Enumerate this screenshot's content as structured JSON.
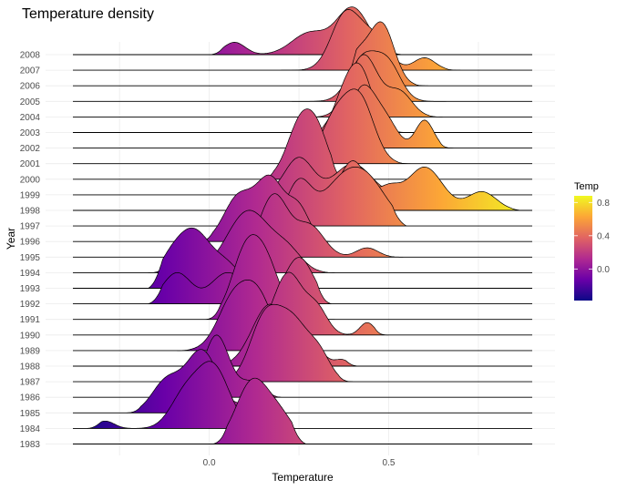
{
  "chart_data": {
    "type": "ridgeline",
    "title": "Temperature density",
    "xlabel": "Temperature",
    "ylabel": "Year",
    "xlim": [
      -0.38,
      0.9
    ],
    "x_ticks": [
      {
        "value": 0.0,
        "label": "0.0"
      },
      {
        "value": 0.5,
        "label": "0.5"
      }
    ],
    "years": [
      "1983",
      "1984",
      "1985",
      "1986",
      "1987",
      "1988",
      "1989",
      "1990",
      "1991",
      "1992",
      "1993",
      "1994",
      "1995",
      "1996",
      "1997",
      "1998",
      "1999",
      "2000",
      "2001",
      "2002",
      "2003",
      "2004",
      "2005",
      "2006",
      "2007",
      "2008"
    ],
    "densities": [
      {
        "year": "1983",
        "range": [
          0.01,
          0.27
        ],
        "peaks": [
          [
            0.12,
            0.045,
            1.0
          ],
          [
            0.2,
            0.04,
            0.4
          ]
        ]
      },
      {
        "year": "1984",
        "range": [
          -0.34,
          0.22
        ],
        "peaks": [
          [
            0.01,
            0.045,
            1.0
          ],
          [
            -0.07,
            0.04,
            0.5
          ],
          [
            -0.29,
            0.025,
            0.12
          ]
        ]
      },
      {
        "year": "1985",
        "range": [
          -0.23,
          0.2
        ],
        "peaks": [
          [
            -0.02,
            0.045,
            1.0
          ],
          [
            -0.12,
            0.04,
            0.5
          ],
          [
            0.12,
            0.03,
            0.2
          ]
        ]
      },
      {
        "year": "1986",
        "range": [
          -0.07,
          0.2
        ],
        "peaks": [
          [
            0.02,
            0.035,
            1.0
          ],
          [
            0.12,
            0.035,
            0.25
          ]
        ]
      },
      {
        "year": "1987",
        "range": [
          -0.01,
          0.4
        ],
        "peaks": [
          [
            0.15,
            0.04,
            0.85
          ],
          [
            0.23,
            0.05,
            1.0
          ],
          [
            0.31,
            0.03,
            0.3
          ]
        ]
      },
      {
        "year": "1988",
        "range": [
          -0.01,
          0.42
        ],
        "peaks": [
          [
            0.17,
            0.05,
            1.0
          ],
          [
            0.29,
            0.03,
            0.3
          ],
          [
            0.37,
            0.02,
            0.1
          ]
        ]
      },
      {
        "year": "1989",
        "range": [
          -0.09,
          0.3
        ],
        "peaks": [
          [
            0.07,
            0.045,
            0.85
          ],
          [
            0.14,
            0.04,
            0.75
          ]
        ]
      },
      {
        "year": "1990",
        "range": [
          0.1,
          0.5
        ],
        "peaks": [
          [
            0.22,
            0.04,
            1.0
          ],
          [
            0.3,
            0.03,
            0.4
          ],
          [
            0.44,
            0.02,
            0.2
          ]
        ]
      },
      {
        "year": "1991",
        "range": [
          -0.01,
          0.35
        ],
        "peaks": [
          [
            0.1,
            0.04,
            1.0
          ],
          [
            0.16,
            0.04,
            0.8
          ]
        ]
      },
      {
        "year": "1992",
        "range": [
          -0.17,
          0.34
        ],
        "peaks": [
          [
            -0.09,
            0.04,
            0.5
          ],
          [
            0.05,
            0.045,
            0.5
          ],
          [
            0.13,
            0.025,
            0.5
          ],
          [
            0.25,
            0.04,
            0.75
          ]
        ]
      },
      {
        "year": "1993",
        "range": [
          -0.17,
          0.19
        ],
        "peaks": [
          [
            -0.04,
            0.045,
            0.85
          ],
          [
            -0.11,
            0.04,
            0.4
          ],
          [
            0.05,
            0.04,
            0.35
          ]
        ]
      },
      {
        "year": "1994",
        "range": [
          -0.17,
          0.35
        ],
        "peaks": [
          [
            -0.07,
            0.03,
            0.55
          ],
          [
            0.11,
            0.06,
            1.0
          ],
          [
            0.22,
            0.04,
            0.3
          ]
        ]
      },
      {
        "year": "1995",
        "range": [
          0.07,
          0.54
        ],
        "peaks": [
          [
            0.18,
            0.04,
            1.0
          ],
          [
            0.28,
            0.04,
            0.5
          ],
          [
            0.44,
            0.03,
            0.15
          ]
        ]
      },
      {
        "year": "1996",
        "range": [
          -0.03,
          0.34
        ],
        "peaks": [
          [
            0.08,
            0.04,
            0.7
          ],
          [
            0.17,
            0.04,
            1.0
          ],
          [
            0.25,
            0.03,
            0.5
          ]
        ]
      },
      {
        "year": "1997",
        "range": [
          0.05,
          0.55
        ],
        "peaks": [
          [
            0.25,
            0.035,
            0.7
          ],
          [
            0.43,
            0.06,
            0.8
          ],
          [
            0.35,
            0.05,
            0.4
          ]
        ]
      },
      {
        "year": "1998",
        "range": [
          0.1,
          0.88
        ],
        "peaks": [
          [
            0.4,
            0.04,
            0.8
          ],
          [
            0.6,
            0.05,
            0.7
          ],
          [
            0.5,
            0.03,
            0.3
          ],
          [
            0.76,
            0.04,
            0.3
          ]
        ]
      },
      {
        "year": "1999",
        "range": [
          0.14,
          0.59
        ],
        "peaks": [
          [
            0.25,
            0.04,
            0.6
          ],
          [
            0.4,
            0.05,
            0.5
          ]
        ]
      },
      {
        "year": "2000",
        "range": [
          0.14,
          0.38
        ],
        "peaks": [
          [
            0.26,
            0.04,
            1.0
          ],
          [
            0.31,
            0.03,
            0.4
          ]
        ]
      },
      {
        "year": "2001",
        "range": [
          0.24,
          0.56
        ],
        "peaks": [
          [
            0.35,
            0.04,
            0.7
          ],
          [
            0.42,
            0.04,
            1.0
          ]
        ]
      },
      {
        "year": "2002",
        "range": [
          0.28,
          0.68
        ],
        "peaks": [
          [
            0.43,
            0.04,
            1.0
          ],
          [
            0.6,
            0.025,
            0.45
          ],
          [
            0.5,
            0.03,
            0.3
          ]
        ]
      },
      {
        "year": "2003",
        "range": [
          0.28,
          0.58
        ],
        "peaks": [
          [
            0.42,
            0.035,
            1.0
          ],
          [
            0.37,
            0.03,
            0.4
          ]
        ]
      },
      {
        "year": "2004",
        "range": [
          0.28,
          0.65
        ],
        "peaks": [
          [
            0.43,
            0.04,
            1.0
          ],
          [
            0.53,
            0.035,
            0.4
          ]
        ]
      },
      {
        "year": "2005",
        "range": [
          0.23,
          0.66
        ],
        "peaks": [
          [
            0.43,
            0.04,
            0.7
          ],
          [
            0.5,
            0.035,
            0.55
          ]
        ]
      },
      {
        "year": "2006",
        "range": [
          0.37,
          0.61
        ],
        "peaks": [
          [
            0.48,
            0.035,
            1.0
          ],
          [
            0.41,
            0.03,
            0.45
          ]
        ]
      },
      {
        "year": "2007",
        "range": [
          0.2,
          0.7
        ],
        "peaks": [
          [
            0.38,
            0.04,
            0.9
          ],
          [
            0.46,
            0.04,
            0.5
          ],
          [
            0.6,
            0.03,
            0.2
          ]
        ]
      },
      {
        "year": "2008",
        "range": [
          0.0,
          0.55
        ],
        "peaks": [
          [
            0.07,
            0.03,
            0.2
          ],
          [
            0.28,
            0.05,
            0.35
          ],
          [
            0.4,
            0.045,
            0.75
          ]
        ]
      }
    ],
    "legend": {
      "title": "Temp",
      "placement": "right",
      "range": [
        -0.38,
        0.88
      ],
      "ticks": [
        {
          "value": 0.0,
          "label": "0.0"
        },
        {
          "value": 0.4,
          "label": "0.4"
        },
        {
          "value": 0.8,
          "label": "0.8"
        }
      ]
    },
    "colorscale": "plasma",
    "colors": [
      "#0d0887",
      "#6a00a8",
      "#b12a90",
      "#e16462",
      "#fca636",
      "#f0f921"
    ],
    "grid": true
  }
}
